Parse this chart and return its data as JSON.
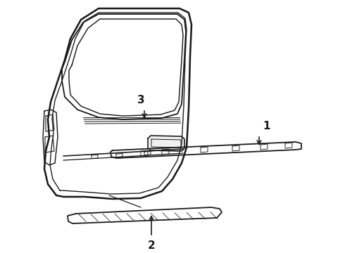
{
  "bg_color": "#ffffff",
  "line_color": "#1a1a1a",
  "line_width": 1.3,
  "label_1": "1",
  "label_2": "2",
  "label_3": "3",
  "label_fontsize": 11,
  "label_fontweight": "bold"
}
